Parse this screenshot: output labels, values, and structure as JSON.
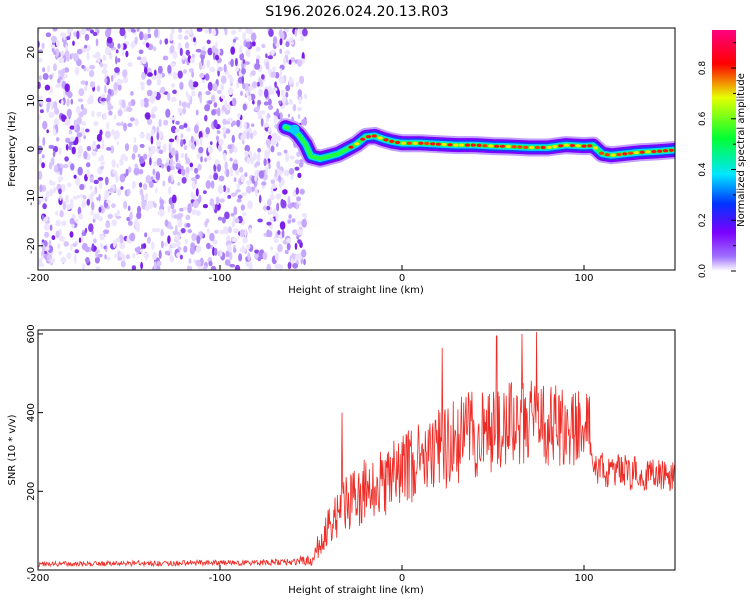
{
  "title": "S196.2026.024.20.13.R03",
  "colors": {
    "snr_line": "#ee2a24",
    "axis": "#000000",
    "colormap": [
      "#ffffff",
      "#7a00ff",
      "#0033ff",
      "#00e6ff",
      "#00ff33",
      "#e6ff00",
      "#ff0000",
      "#ff0080"
    ]
  },
  "chart_data": [
    {
      "type": "heatmap",
      "id": "spectrogram",
      "title": "S196.2026.024.20.13.R03",
      "xlabel": "Height of straight line (km)",
      "ylabel": "Frequency (Hz)",
      "xlim": [
        -200,
        150
      ],
      "ylim": [
        -25,
        25
      ],
      "xticks": [
        -200,
        -100,
        0,
        100
      ],
      "xtick_labels": [
        "-200",
        "-100",
        "0",
        "100"
      ],
      "yticks": [
        -20,
        -10,
        0,
        10,
        20
      ],
      "ytick_labels": [
        "-20",
        "-10",
        "0",
        "10",
        "20"
      ],
      "noise_region_x": [
        -200,
        -53
      ],
      "signal_start_x": -53,
      "signal_track": {
        "x": [
          -64,
          -60,
          -57,
          -53,
          -50,
          -45,
          -40,
          -35,
          -30,
          -25,
          -20,
          -15,
          -10,
          -5,
          0,
          10,
          20,
          30,
          40,
          50,
          60,
          70,
          80,
          90,
          100,
          105,
          110,
          115,
          120,
          130,
          140,
          150
        ],
        "freq": [
          4.5,
          4,
          3,
          1,
          -1.5,
          -2,
          -1.5,
          -1,
          0,
          1,
          2.5,
          2.7,
          2,
          1.5,
          1.2,
          1.2,
          1,
          0.8,
          0.8,
          0.6,
          0.5,
          0.3,
          0.3,
          0.8,
          0.6,
          0.7,
          -1,
          -1.3,
          -1.1,
          -0.7,
          -0.5,
          -0.2
        ]
      },
      "colorbar": {
        "label": "Normalized spectral amplitude",
        "range": [
          0,
          0.95
        ],
        "ticks": [
          0,
          0.2,
          0.4,
          0.6,
          0.8
        ],
        "tick_labels": [
          "0.0",
          "0.2",
          "0.4",
          "0.6",
          "0.8"
        ]
      }
    },
    {
      "type": "line",
      "id": "snr",
      "xlabel": "Height of straight line (km)",
      "ylabel": "SNR (10 * v/v)",
      "xlim": [
        -200,
        150
      ],
      "ylim": [
        0,
        610
      ],
      "xticks": [
        -200,
        -100,
        0,
        100
      ],
      "xtick_labels": [
        "-200",
        "-100",
        "0",
        "100"
      ],
      "yticks": [
        0,
        200,
        400,
        600
      ],
      "ytick_labels": [
        "0",
        "200",
        "400",
        "600"
      ],
      "series": [
        {
          "name": "SNR",
          "envelope_x": [
            -200,
            -60,
            -55,
            -50,
            -45,
            -40,
            -37,
            -34,
            -30,
            -25,
            -20,
            -10,
            0,
            10,
            20,
            30,
            40,
            50,
            60,
            70,
            80,
            90,
            100,
            103,
            104,
            110,
            120,
            130,
            140,
            150
          ],
          "envelope_mid": [
            15,
            20,
            25,
            22,
            70,
            110,
            130,
            150,
            170,
            190,
            200,
            220,
            250,
            280,
            310,
            330,
            345,
            355,
            370,
            375,
            370,
            365,
            360,
            355,
            260,
            255,
            250,
            245,
            240,
            240
          ],
          "envelope_amp": [
            6,
            8,
            12,
            15,
            35,
            50,
            60,
            70,
            75,
            80,
            85,
            90,
            95,
            100,
            110,
            115,
            115,
            110,
            110,
            110,
            105,
            100,
            95,
            95,
            40,
            45,
            45,
            45,
            40,
            40
          ],
          "peaks": [
            {
              "x": -33,
              "y": 400
            },
            {
              "x": 22,
              "y": 565
            },
            {
              "x": 52,
              "y": 595
            },
            {
              "x": 66,
              "y": 600
            },
            {
              "x": 74,
              "y": 605
            }
          ]
        }
      ]
    }
  ]
}
